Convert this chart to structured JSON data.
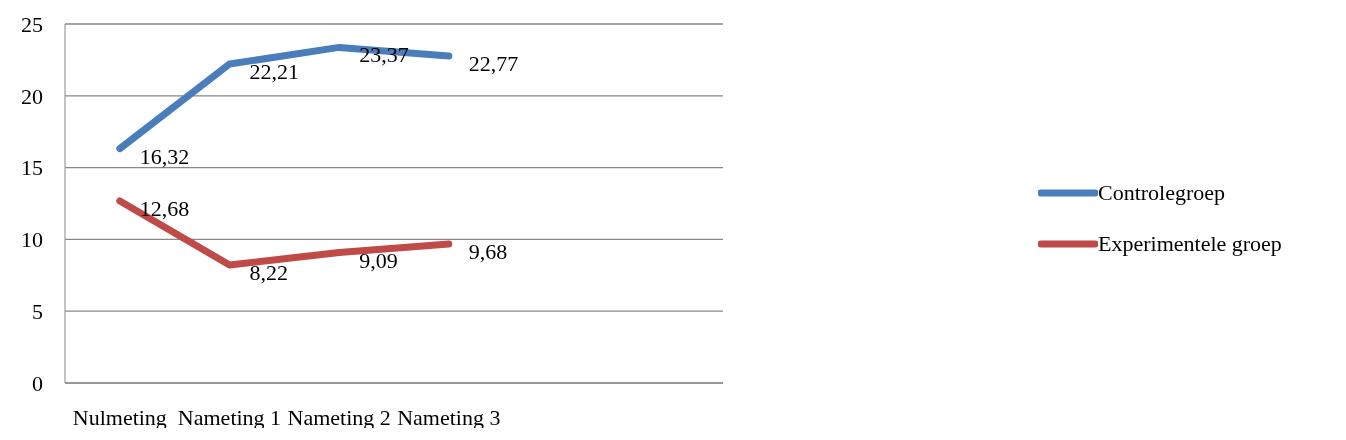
{
  "chart_data": {
    "type": "line",
    "categories": [
      "Nulmeting",
      "Nameting 1",
      "Nameting 2",
      "Nameting 3",
      null,
      null
    ],
    "series": [
      {
        "name": "Controlegroep",
        "color": "#4a7ebb",
        "values": [
          16.32,
          22.21,
          23.37,
          22.77,
          null,
          null
        ],
        "value_labels": [
          "16,32",
          "22,21",
          "23,37",
          "22,77",
          null,
          null
        ]
      },
      {
        "name": "Experimentele groep",
        "color": "#be4b48",
        "values": [
          12.68,
          8.22,
          9.09,
          9.68,
          null,
          null
        ],
        "value_labels": [
          "12,68",
          "8,22",
          "9,09",
          "9,68",
          null,
          null
        ]
      }
    ],
    "ylim": [
      0,
      25
    ],
    "yticks": [
      0,
      5,
      10,
      15,
      20,
      25
    ],
    "grid": "y",
    "legend": "right",
    "marker": "none",
    "line_style": "solid"
  }
}
